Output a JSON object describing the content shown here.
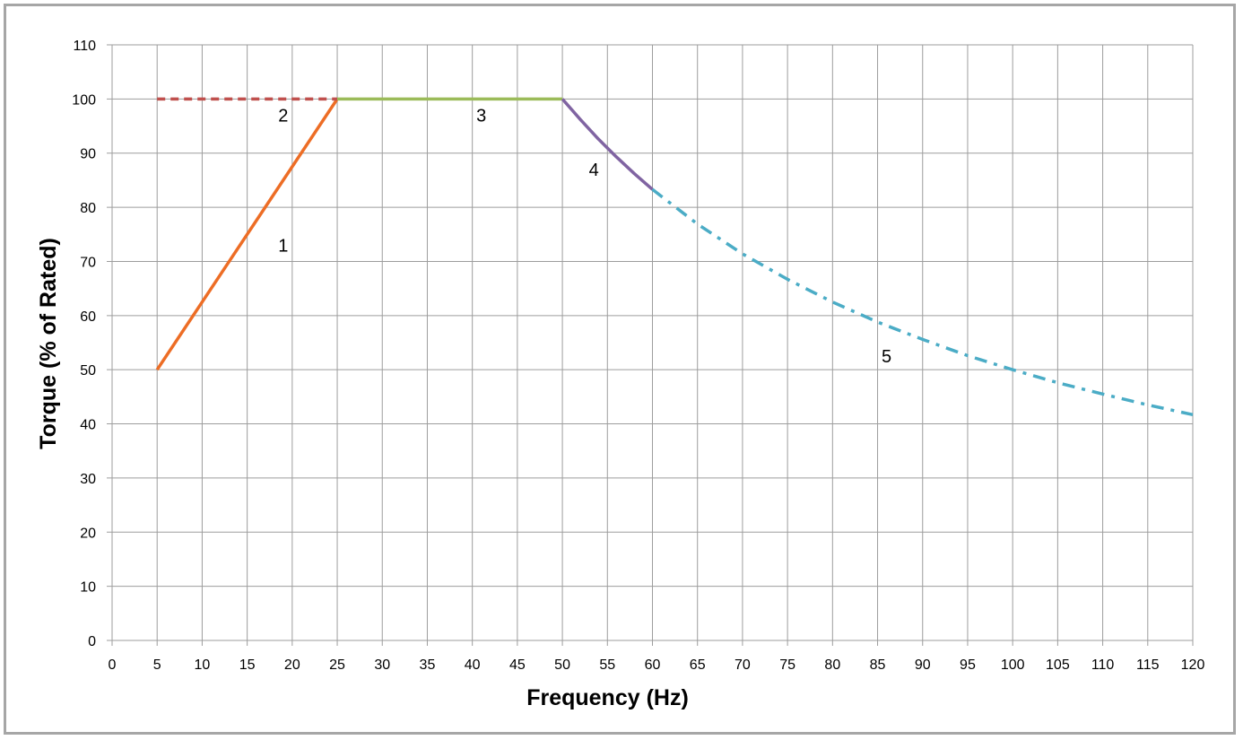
{
  "chart_data": {
    "type": "line",
    "title": "",
    "xlabel": "Frequency (Hz)",
    "ylabel": "Torque (% of Rated)",
    "xlim": [
      0,
      120
    ],
    "ylim": [
      0,
      110
    ],
    "x_ticks": [
      0,
      5,
      10,
      15,
      20,
      25,
      30,
      35,
      40,
      45,
      50,
      55,
      60,
      65,
      70,
      75,
      80,
      85,
      90,
      95,
      100,
      105,
      110,
      115,
      120
    ],
    "y_ticks": [
      0,
      10,
      20,
      30,
      40,
      50,
      60,
      70,
      80,
      90,
      100,
      110
    ],
    "grid": true,
    "legend": "none",
    "series": [
      {
        "label": "1",
        "color": "#ed6d25",
        "style": "solid",
        "x": [
          5,
          25
        ],
        "y": [
          50,
          100
        ],
        "label_at": [
          19,
          73
        ]
      },
      {
        "label": "2",
        "color": "#c0504d",
        "style": "dashed",
        "x": [
          5,
          25
        ],
        "y": [
          100,
          100
        ],
        "label_at": [
          19,
          97
        ]
      },
      {
        "label": "3",
        "color": "#9bbb59",
        "style": "solid",
        "x": [
          25,
          50
        ],
        "y": [
          100,
          100
        ],
        "label_at": [
          41,
          97
        ]
      },
      {
        "label": "4",
        "color": "#8064a2",
        "style": "solid",
        "x": [
          50,
          52,
          54,
          56,
          58,
          60
        ],
        "y": [
          100,
          96.2,
          92.6,
          89.3,
          86.2,
          83.3
        ],
        "label_at": [
          53.5,
          87
        ]
      },
      {
        "label": "5",
        "color": "#4bacc6",
        "style": "dashdot",
        "x": [
          60,
          65,
          70,
          75,
          80,
          85,
          90,
          95,
          100,
          105,
          110,
          115,
          120
        ],
        "y": [
          83.3,
          76.9,
          71.4,
          66.7,
          62.5,
          58.8,
          55.6,
          52.6,
          50,
          47.6,
          45.5,
          43.5,
          41.7
        ],
        "label_at": [
          86,
          52.5
        ]
      }
    ]
  }
}
